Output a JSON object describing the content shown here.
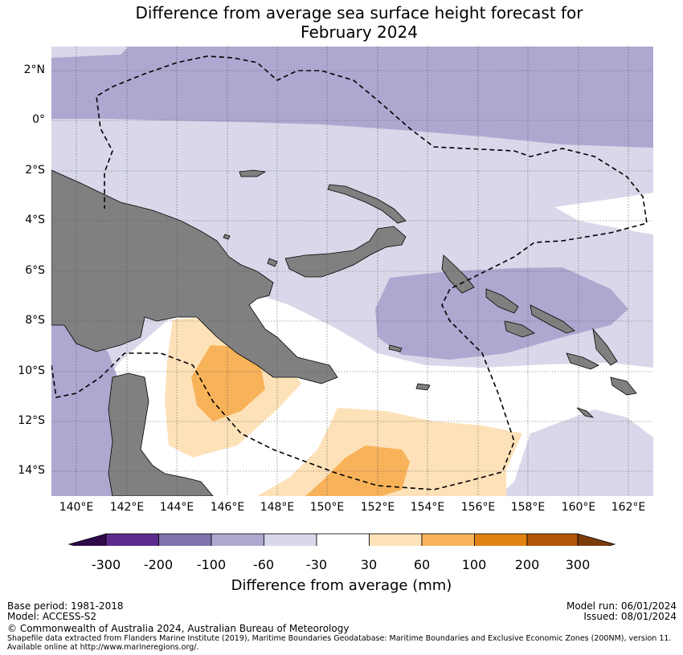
{
  "title": {
    "line1": "Difference from average sea surface height forecast for",
    "line2": "February 2024"
  },
  "map": {
    "lat_labels": [
      "2°N",
      "0°",
      "2°S",
      "4°S",
      "6°S",
      "8°S",
      "10°S",
      "12°S",
      "14°S"
    ],
    "lon_labels": [
      "140°E",
      "142°E",
      "144°E",
      "146°E",
      "148°E",
      "150°E",
      "152°E",
      "154°E",
      "156°E",
      "158°E",
      "160°E",
      "162°E"
    ],
    "lat_range": [
      -15,
      3
    ],
    "lon_range": [
      139,
      163
    ],
    "colors": {
      "land": "#808080",
      "ocean_neutral": "#ffffff",
      "anomaly_-60_-30": "#d8d8ea",
      "anomaly_-100_-60": "#aea7d0",
      "anomaly_30_60": "#fde1b8",
      "anomaly_60_100": "#f8b259"
    },
    "eez_boundary_style": "dashed black line"
  },
  "colorbar": {
    "tick_labels": [
      "-300",
      "-200",
      "-100",
      "-60",
      "-30",
      "30",
      "60",
      "100",
      "200",
      "300"
    ],
    "colors": [
      "#2e0a4a",
      "#5c2a8c",
      "#7f72ad",
      "#aea7d0",
      "#d8d8ea",
      "#ffffff",
      "#fde1b8",
      "#f8b259",
      "#e28213",
      "#b15707",
      "#7a3b0b"
    ],
    "title": "Difference from average (mm)"
  },
  "footer": {
    "base_period": "Base period: 1981-2018",
    "model": "Model: ACCESS-S2",
    "model_run": "Model run: 06/01/2024",
    "issued": "Issued: 08/01/2024",
    "copyright": "© Commonwealth of Australia 2024, Australian Bureau of Meteorology",
    "shapefile_line1": "Shapefile data extracted from Flanders Marine Institute (2019), Maritime Boundaries Geodatabase: Maritime Boundaries and Exclusive Economic Zones (200NM), version 11.",
    "shapefile_line2": "Available online at http://www.marineregions.org/."
  }
}
